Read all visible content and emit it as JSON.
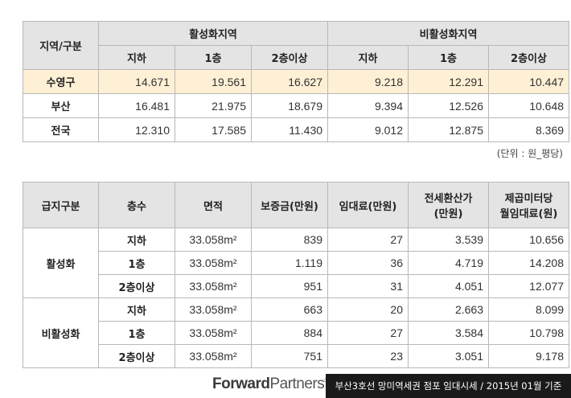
{
  "table1": {
    "corner_label": "지역/구분",
    "group_active": "활성화지역",
    "group_inactive": "비활성화지역",
    "floors": [
      "지하",
      "1층",
      "2층이상",
      "지하",
      "1층",
      "2층이상"
    ],
    "rows": [
      {
        "region": "수영구",
        "values": [
          "14.671",
          "19.561",
          "16.627",
          "9.218",
          "12.291",
          "10.447"
        ],
        "highlight": true
      },
      {
        "region": "부산",
        "values": [
          "16.481",
          "21.975",
          "18.679",
          "9.394",
          "12.526",
          "10.648"
        ],
        "highlight": false
      },
      {
        "region": "전국",
        "values": [
          "12.310",
          "17.585",
          "11.430",
          "9.012",
          "12.875",
          "8.369"
        ],
        "highlight": false
      }
    ]
  },
  "unit_note": "(단위 : 원_평당)",
  "table2": {
    "headers": {
      "category": "급지구분",
      "floor": "층수",
      "area": "면적",
      "deposit": "보증금(만원)",
      "rent": "임대료(만원)",
      "jeonse_line1": "전세환산가",
      "jeonse_line2": "(만원)",
      "per_m2_line1": "제곱미터당",
      "per_m2_line2": "월임대료(원)"
    },
    "groups": [
      {
        "label": "활성화",
        "rows": [
          {
            "floor": "지하",
            "area": "33.058m²",
            "deposit": "839",
            "rent": "27",
            "jeonse": "3.539",
            "per_m2": "10.656"
          },
          {
            "floor": "1층",
            "area": "33.058m²",
            "deposit": "1.119",
            "rent": "36",
            "jeonse": "4.719",
            "per_m2": "14.208"
          },
          {
            "floor": "2층이상",
            "area": "33.058m²",
            "deposit": "951",
            "rent": "31",
            "jeonse": "4.051",
            "per_m2": "12.077"
          }
        ]
      },
      {
        "label": "비활성화",
        "rows": [
          {
            "floor": "지하",
            "area": "33.058m²",
            "deposit": "663",
            "rent": "20",
            "jeonse": "2.663",
            "per_m2": "8.099"
          },
          {
            "floor": "1층",
            "area": "33.058m²",
            "deposit": "884",
            "rent": "27",
            "jeonse": "3.584",
            "per_m2": "10.798"
          },
          {
            "floor": "2층이상",
            "area": "33.058m²",
            "deposit": "751",
            "rent": "23",
            "jeonse": "3.051",
            "per_m2": "9.178"
          }
        ]
      }
    ]
  },
  "footer": {
    "brand_bold": "Forward",
    "brand_light": "Partners",
    "brand_mark": "®",
    "caption": "부산3호선 망미역세권 점포 임대시세 / 2015년 01월 기준"
  },
  "colors": {
    "header_bg": "#e4e4e4",
    "highlight_row": "#fdf0d5",
    "footer_bar": "#1a1a1a"
  }
}
